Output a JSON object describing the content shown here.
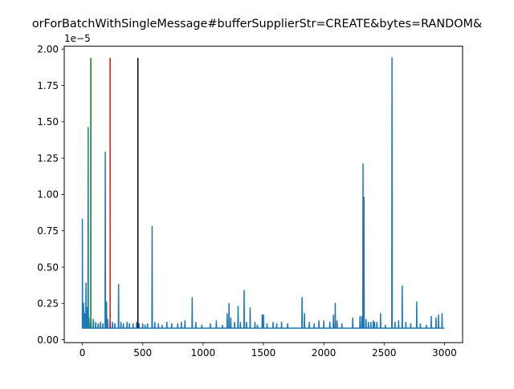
{
  "chart_data": {
    "type": "line",
    "title": "orForBatchWithSingleMessage#bufferSupplierStr=CREATE&bytes=RANDOM&",
    "xlabel": "",
    "ylabel": "",
    "y_scale_label": "1e−5",
    "xlim": [
      -150,
      3150
    ],
    "ylim": [
      -0.02,
      2.02
    ],
    "x_ticks": [
      0,
      500,
      1000,
      1500,
      2000,
      2500,
      3000
    ],
    "x_tick_labels": [
      "0",
      "500",
      "1000",
      "1500",
      "2000",
      "2500",
      "3000"
    ],
    "y_ticks": [
      0.0,
      0.25,
      0.5,
      0.75,
      1.0,
      1.25,
      1.5,
      1.75,
      2.0
    ],
    "y_tick_labels": [
      "0.00",
      "0.25",
      "0.50",
      "0.75",
      "1.00",
      "1.25",
      "1.50",
      "1.75",
      "2.00"
    ],
    "series": [
      {
        "color": "#1f77b4",
        "x_max": 3000,
        "baseline": 0.08,
        "spikes": [
          [
            0,
            0.83
          ],
          [
            10,
            0.25
          ],
          [
            20,
            0.18
          ],
          [
            30,
            0.39
          ],
          [
            40,
            0.22
          ],
          [
            48,
            1.46
          ],
          [
            55,
            0.15
          ],
          [
            70,
            0.12
          ],
          [
            90,
            0.14
          ],
          [
            110,
            0.12
          ],
          [
            130,
            0.11
          ],
          [
            150,
            0.12
          ],
          [
            170,
            0.11
          ],
          [
            190,
            1.29
          ],
          [
            200,
            0.26
          ],
          [
            210,
            0.14
          ],
          [
            230,
            0.13
          ],
          [
            250,
            0.12
          ],
          [
            270,
            0.11
          ],
          [
            300,
            0.38
          ],
          [
            320,
            0.12
          ],
          [
            340,
            0.11
          ],
          [
            370,
            0.12
          ],
          [
            390,
            0.11
          ],
          [
            420,
            0.11
          ],
          [
            450,
            0.12
          ],
          [
            470,
            0.11
          ],
          [
            500,
            0.11
          ],
          [
            520,
            0.1
          ],
          [
            540,
            0.11
          ],
          [
            578,
            0.78
          ],
          [
            600,
            0.12
          ],
          [
            630,
            0.11
          ],
          [
            660,
            0.1
          ],
          [
            700,
            0.12
          ],
          [
            740,
            0.11
          ],
          [
            790,
            0.11
          ],
          [
            820,
            0.12
          ],
          [
            850,
            0.13
          ],
          [
            910,
            0.29
          ],
          [
            940,
            0.12
          ],
          [
            990,
            0.1
          ],
          [
            1060,
            0.11
          ],
          [
            1110,
            0.13
          ],
          [
            1160,
            0.1
          ],
          [
            1200,
            0.18
          ],
          [
            1215,
            0.25
          ],
          [
            1230,
            0.15
          ],
          [
            1260,
            0.12
          ],
          [
            1290,
            0.23
          ],
          [
            1310,
            0.12
          ],
          [
            1340,
            0.34
          ],
          [
            1360,
            0.12
          ],
          [
            1390,
            0.22
          ],
          [
            1430,
            0.12
          ],
          [
            1450,
            0.1
          ],
          [
            1490,
            0.17
          ],
          [
            1500,
            0.17
          ],
          [
            1530,
            0.11
          ],
          [
            1580,
            0.12
          ],
          [
            1610,
            0.11
          ],
          [
            1650,
            0.12
          ],
          [
            1700,
            0.11
          ],
          [
            1820,
            0.29
          ],
          [
            1840,
            0.18
          ],
          [
            1880,
            0.12
          ],
          [
            1920,
            0.11
          ],
          [
            1960,
            0.13
          ],
          [
            2000,
            0.13
          ],
          [
            2050,
            0.12
          ],
          [
            2080,
            0.17
          ],
          [
            2095,
            0.25
          ],
          [
            2110,
            0.13
          ],
          [
            2150,
            0.11
          ],
          [
            2240,
            0.15
          ],
          [
            2300,
            0.16
          ],
          [
            2315,
            0.16
          ],
          [
            2325,
            1.21
          ],
          [
            2333,
            0.98
          ],
          [
            2350,
            0.14
          ],
          [
            2370,
            0.12
          ],
          [
            2390,
            0.12
          ],
          [
            2410,
            0.13
          ],
          [
            2420,
            0.12
          ],
          [
            2440,
            0.12
          ],
          [
            2470,
            0.18
          ],
          [
            2510,
            0.1
          ],
          [
            2565,
            1.94
          ],
          [
            2590,
            0.12
          ],
          [
            2620,
            0.13
          ],
          [
            2650,
            0.37
          ],
          [
            2680,
            0.12
          ],
          [
            2720,
            0.11
          ],
          [
            2770,
            0.26
          ],
          [
            2800,
            0.11
          ],
          [
            2850,
            0.1
          ],
          [
            2890,
            0.16
          ],
          [
            2930,
            0.15
          ],
          [
            2950,
            0.17
          ],
          [
            2980,
            0.18
          ]
        ]
      }
    ],
    "vlines": [
      {
        "x": 70,
        "ymin": 0.08,
        "ymax": 1.94,
        "color": "#008000"
      },
      {
        "x": 230,
        "ymin": 0.08,
        "ymax": 1.94,
        "color": "#ff0000"
      },
      {
        "x": 460,
        "ymin": 0.08,
        "ymax": 1.94,
        "color": "#000000"
      }
    ],
    "grid": false,
    "legend": false
  }
}
